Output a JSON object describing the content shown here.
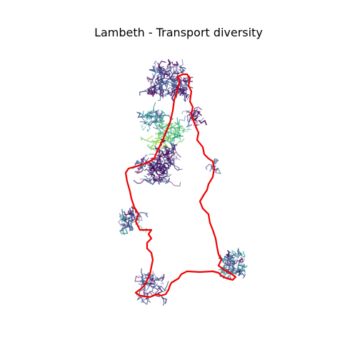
{
  "title": "Lambeth - Transport diversity",
  "colors": {
    "boundary": "#ee0000",
    "background": "#ffffff",
    "low_diversity": "#440154",
    "mid_low": "#3b528b",
    "mid": "#21918c",
    "mid_high": "#5ec962",
    "high_diversity": "#b5de2b"
  }
}
